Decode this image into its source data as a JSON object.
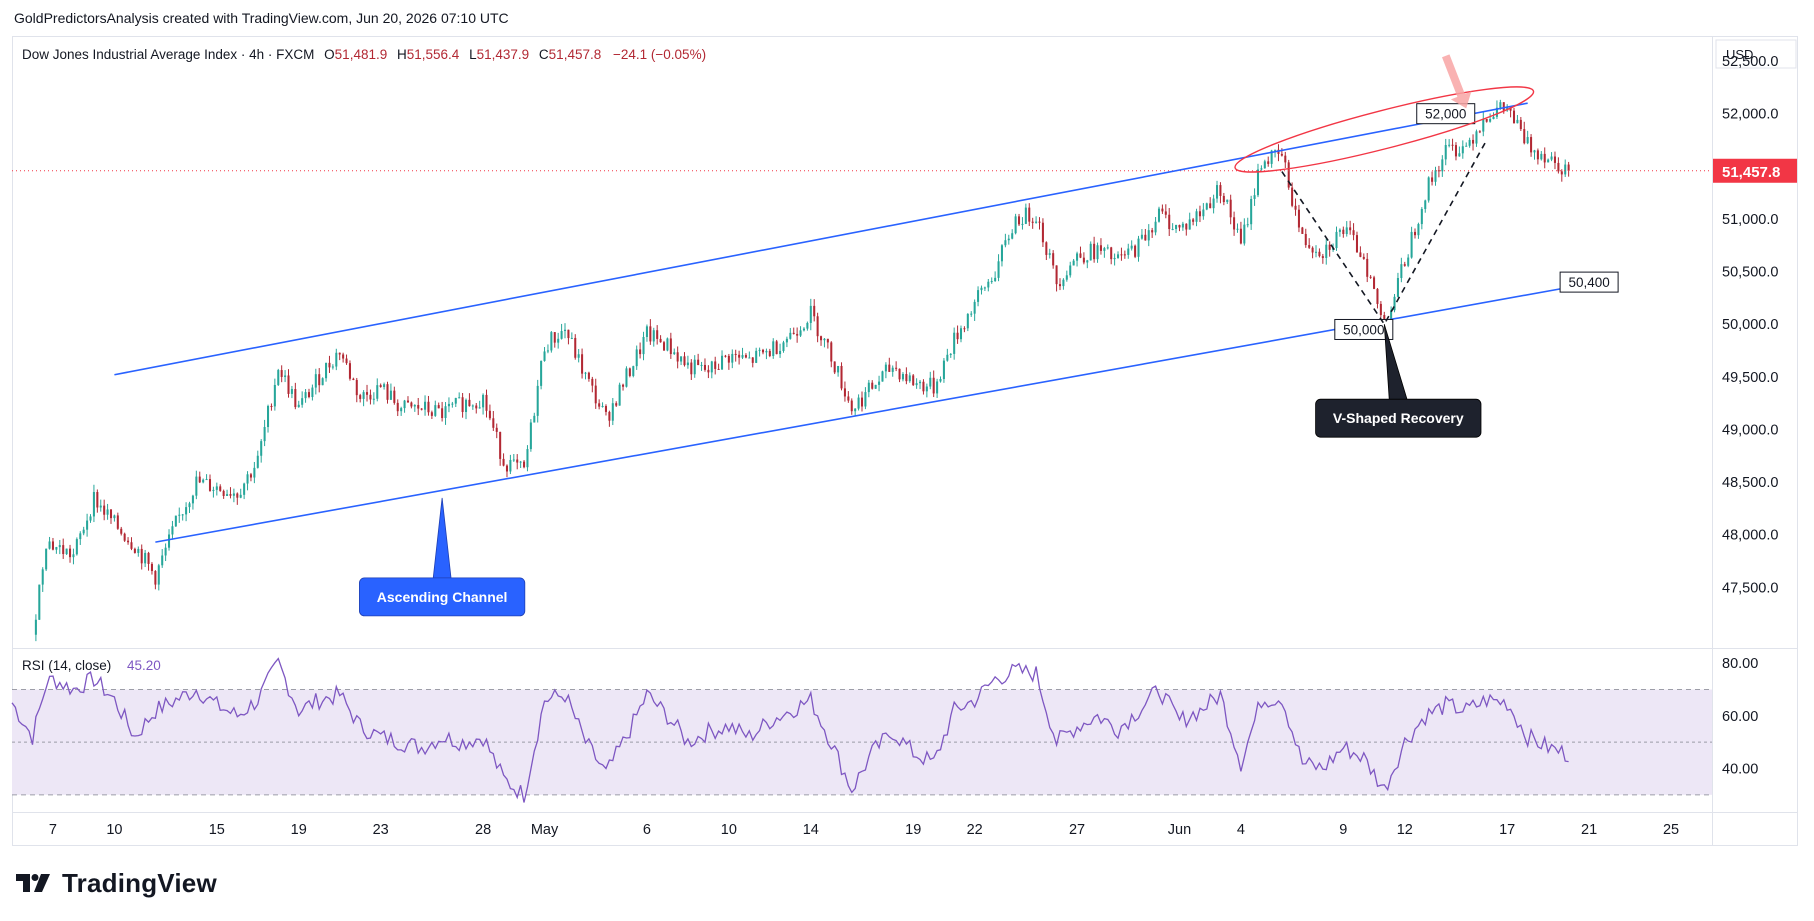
{
  "credit": "GoldPredictorsAnalysis created with TradingView.com, Jun 20, 2026 07:10 UTC",
  "header": {
    "symbol": "Dow Jones Industrial Average Index · 4h · FXCM",
    "o_label": "O",
    "o_value": "51,481.9",
    "h_label": "H",
    "h_value": "51,556.4",
    "l_label": "L",
    "l_value": "51,437.9",
    "c_label": "C",
    "c_value": "51,457.8",
    "change": "−24.1 (−0.05%)"
  },
  "currency": "USD",
  "last_price_label": "51,457.8",
  "colors": {
    "up": "#26a69a",
    "down": "#b22833",
    "channel": "#2962ff",
    "rsi": "#7e57c2",
    "rsi_band": "#ede7f6",
    "last_price": "#f23645",
    "ellipse": "#f23645",
    "arrow": "#f8a5a5",
    "callout_blue": "#2962ff",
    "callout_dark": "#1e222d"
  },
  "chart_data": {
    "type": "candlestick",
    "timeframe": "4h",
    "ylim": [
      47000,
      52700
    ],
    "y_ticks": [
      52500,
      52000,
      51500,
      51000,
      50500,
      50000,
      49500,
      49000,
      48500,
      48000,
      47500
    ],
    "y_tick_labels": [
      "52,500.0",
      "52,000.0",
      "51,500.0",
      "51,000.0",
      "50,500.0",
      "50,000.0",
      "49,500.0",
      "49,000.0",
      "48,500.0",
      "48,000.0",
      "47,500.0"
    ],
    "x_axis_range": [
      "2026-04-05",
      "2026-06-27"
    ],
    "x_ticks": [
      {
        "date": "2026-04-07",
        "label": "7"
      },
      {
        "date": "2026-04-10",
        "label": "10"
      },
      {
        "date": "2026-04-15",
        "label": "15"
      },
      {
        "date": "2026-04-19",
        "label": "19"
      },
      {
        "date": "2026-04-23",
        "label": "23"
      },
      {
        "date": "2026-04-28",
        "label": "28"
      },
      {
        "date": "2026-05-01",
        "label": "May"
      },
      {
        "date": "2026-05-06",
        "label": "6"
      },
      {
        "date": "2026-05-10",
        "label": "10"
      },
      {
        "date": "2026-05-14",
        "label": "14"
      },
      {
        "date": "2026-05-19",
        "label": "19"
      },
      {
        "date": "2026-05-22",
        "label": "22"
      },
      {
        "date": "2026-05-27",
        "label": "27"
      },
      {
        "date": "2026-06-01",
        "label": "Jun"
      },
      {
        "date": "2026-06-04",
        "label": "4"
      },
      {
        "date": "2026-06-09",
        "label": "9"
      },
      {
        "date": "2026-06-12",
        "label": "12"
      },
      {
        "date": "2026-06-17",
        "label": "17"
      },
      {
        "date": "2026-06-21",
        "label": "21"
      },
      {
        "date": "2026-06-25",
        "label": "25"
      }
    ],
    "price_anchors": [
      [
        "2026-04-06",
        47050
      ],
      [
        "2026-04-06T16:00",
        47950
      ],
      [
        "2026-04-07",
        47900
      ],
      [
        "2026-04-08",
        47800
      ],
      [
        "2026-04-09",
        48350
      ],
      [
        "2026-04-10",
        48100
      ],
      [
        "2026-04-11",
        47900
      ],
      [
        "2026-04-12",
        47600
      ],
      [
        "2026-04-13",
        48100
      ],
      [
        "2026-04-14",
        48500
      ],
      [
        "2026-04-15",
        48450
      ],
      [
        "2026-04-16",
        48400
      ],
      [
        "2026-04-17",
        48700
      ],
      [
        "2026-04-18",
        49600
      ],
      [
        "2026-04-19",
        49200
      ],
      [
        "2026-04-20",
        49500
      ],
      [
        "2026-04-21",
        49750
      ],
      [
        "2026-04-22",
        49300
      ],
      [
        "2026-04-23",
        49400
      ],
      [
        "2026-04-24",
        49200
      ],
      [
        "2026-04-25",
        49200
      ],
      [
        "2026-04-26",
        49150
      ],
      [
        "2026-04-27",
        49250
      ],
      [
        "2026-04-28",
        49300
      ],
      [
        "2026-04-29",
        48700
      ],
      [
        "2026-04-30",
        48600
      ],
      [
        "2026-05-01",
        49800
      ],
      [
        "2026-05-02",
        49950
      ],
      [
        "2026-05-03",
        49500
      ],
      [
        "2026-05-04",
        49100
      ],
      [
        "2026-05-05",
        49500
      ],
      [
        "2026-05-06",
        49900
      ],
      [
        "2026-05-07",
        49800
      ],
      [
        "2026-05-08",
        49600
      ],
      [
        "2026-05-09",
        49550
      ],
      [
        "2026-05-10",
        49700
      ],
      [
        "2026-05-11",
        49650
      ],
      [
        "2026-05-12",
        49750
      ],
      [
        "2026-05-13",
        49900
      ],
      [
        "2026-05-14",
        50100
      ],
      [
        "2026-05-15",
        49700
      ],
      [
        "2026-05-16",
        49200
      ],
      [
        "2026-05-17",
        49400
      ],
      [
        "2026-05-18",
        49600
      ],
      [
        "2026-05-19",
        49450
      ],
      [
        "2026-05-20",
        49400
      ],
      [
        "2026-05-21",
        49850
      ],
      [
        "2026-05-22",
        50200
      ],
      [
        "2026-05-23",
        50500
      ],
      [
        "2026-05-24",
        51000
      ],
      [
        "2026-05-25",
        51050
      ],
      [
        "2026-05-26",
        50400
      ],
      [
        "2026-05-27",
        50650
      ],
      [
        "2026-05-28",
        50700
      ],
      [
        "2026-05-29",
        50600
      ],
      [
        "2026-05-30",
        50750
      ],
      [
        "2026-05-31",
        51050
      ],
      [
        "2026-06-01",
        50900
      ],
      [
        "2026-06-02",
        51050
      ],
      [
        "2026-06-03",
        51300
      ],
      [
        "2026-06-04",
        50750
      ],
      [
        "2026-06-05",
        51550
      ],
      [
        "2026-06-06",
        51600
      ],
      [
        "2026-06-07",
        50800
      ],
      [
        "2026-06-08",
        50700
      ],
      [
        "2026-06-09",
        50900
      ],
      [
        "2026-06-10",
        50650
      ],
      [
        "2026-06-11",
        49950
      ],
      [
        "2026-06-12",
        50600
      ],
      [
        "2026-06-13",
        51250
      ],
      [
        "2026-06-14",
        51650
      ],
      [
        "2026-06-15",
        51700
      ],
      [
        "2026-06-16",
        52000
      ],
      [
        "2026-06-17",
        52050
      ],
      [
        "2026-06-18",
        51700
      ],
      [
        "2026-06-19",
        51600
      ],
      [
        "2026-06-20",
        51457.8
      ]
    ],
    "rsi": {
      "title": "RSI (14, close)",
      "value": "45.20",
      "ylim": [
        25,
        85
      ],
      "y_ticks": [
        80,
        60,
        40
      ],
      "y_tick_labels": [
        "80.00",
        "60.00",
        "40.00"
      ],
      "band": [
        30,
        70
      ],
      "midline": 50,
      "anchors": [
        [
          "2026-04-05",
          65
        ],
        [
          "2026-04-06",
          52
        ],
        [
          "2026-04-06T16:00",
          72
        ],
        [
          "2026-04-07",
          74
        ],
        [
          "2026-04-08",
          70
        ],
        [
          "2026-04-09",
          74
        ],
        [
          "2026-04-10",
          66
        ],
        [
          "2026-04-11",
          52
        ],
        [
          "2026-04-12",
          62
        ],
        [
          "2026-04-13",
          66
        ],
        [
          "2026-04-14",
          70
        ],
        [
          "2026-04-15",
          64
        ],
        [
          "2026-04-16",
          60
        ],
        [
          "2026-04-17",
          66
        ],
        [
          "2026-04-18",
          80
        ],
        [
          "2026-04-19",
          62
        ],
        [
          "2026-04-20",
          66
        ],
        [
          "2026-04-21",
          68
        ],
        [
          "2026-04-22",
          56
        ],
        [
          "2026-04-23",
          52
        ],
        [
          "2026-04-24",
          50
        ],
        [
          "2026-04-25",
          48
        ],
        [
          "2026-04-26",
          52
        ],
        [
          "2026-04-27",
          50
        ],
        [
          "2026-04-28",
          52
        ],
        [
          "2026-04-29",
          36
        ],
        [
          "2026-04-30",
          30
        ],
        [
          "2026-05-01",
          66
        ],
        [
          "2026-05-02",
          68
        ],
        [
          "2026-05-03",
          50
        ],
        [
          "2026-05-04",
          38
        ],
        [
          "2026-05-05",
          52
        ],
        [
          "2026-05-06",
          68
        ],
        [
          "2026-05-07",
          60
        ],
        [
          "2026-05-08",
          50
        ],
        [
          "2026-05-09",
          54
        ],
        [
          "2026-05-10",
          56
        ],
        [
          "2026-05-11",
          52
        ],
        [
          "2026-05-12",
          58
        ],
        [
          "2026-05-13",
          62
        ],
        [
          "2026-05-14",
          66
        ],
        [
          "2026-05-15",
          50
        ],
        [
          "2026-05-16",
          32
        ],
        [
          "2026-05-17",
          46
        ],
        [
          "2026-05-18",
          54
        ],
        [
          "2026-05-19",
          46
        ],
        [
          "2026-05-20",
          42
        ],
        [
          "2026-05-21",
          62
        ],
        [
          "2026-05-22",
          66
        ],
        [
          "2026-05-23",
          74
        ],
        [
          "2026-05-24",
          77
        ],
        [
          "2026-05-25",
          76
        ],
        [
          "2026-05-26",
          50
        ],
        [
          "2026-05-27",
          56
        ],
        [
          "2026-05-28",
          60
        ],
        [
          "2026-05-29",
          55
        ],
        [
          "2026-05-30",
          62
        ],
        [
          "2026-05-31",
          70
        ],
        [
          "2026-06-01",
          58
        ],
        [
          "2026-06-02",
          62
        ],
        [
          "2026-06-03",
          68
        ],
        [
          "2026-06-04",
          42
        ],
        [
          "2026-06-05",
          66
        ],
        [
          "2026-06-06",
          67
        ],
        [
          "2026-06-07",
          42
        ],
        [
          "2026-06-08",
          40
        ],
        [
          "2026-06-09",
          48
        ],
        [
          "2026-06-10",
          44
        ],
        [
          "2026-06-11",
          32
        ],
        [
          "2026-06-12",
          50
        ],
        [
          "2026-06-13",
          60
        ],
        [
          "2026-06-14",
          64
        ],
        [
          "2026-06-15",
          62
        ],
        [
          "2026-06-16",
          66
        ],
        [
          "2026-06-17",
          65
        ],
        [
          "2026-06-18",
          52
        ],
        [
          "2026-06-19",
          48
        ],
        [
          "2026-06-20",
          45.2
        ]
      ]
    },
    "annotations": [
      {
        "type": "trendline",
        "name": "channel-upper",
        "from": [
          "2026-04-10",
          49520
        ],
        "to": [
          "2026-06-18",
          52100
        ]
      },
      {
        "type": "trendline",
        "name": "channel-lower",
        "from": [
          "2026-04-12",
          47930
        ],
        "to": [
          "2026-06-20",
          50350
        ]
      },
      {
        "type": "label",
        "text": "52,000",
        "at": [
          "2026-06-14",
          52000
        ]
      },
      {
        "type": "label",
        "text": "50,000",
        "at": [
          "2026-06-10",
          49950
        ]
      },
      {
        "type": "label",
        "text": "50,400",
        "at": [
          "2026-06-21",
          50400
        ]
      },
      {
        "type": "callout",
        "text": "Ascending Channel",
        "points_to": [
          "2026-04-26",
          48350
        ]
      },
      {
        "type": "callout",
        "text": "V-Shaped Recovery",
        "points_to": [
          "2026-06-11",
          50000
        ]
      },
      {
        "type": "ellipse",
        "name": "resistance-zone",
        "from": [
          "2026-06-04",
          51500
        ],
        "to": [
          "2026-06-18",
          52200
        ]
      },
      {
        "type": "arrow",
        "name": "sell-arrow",
        "from": [
          "2026-06-14",
          52550
        ],
        "to": [
          "2026-06-15",
          52050
        ]
      },
      {
        "type": "dashed-path",
        "name": "v-recovery-path",
        "points": [
          [
            "2026-06-06",
            51450
          ],
          [
            "2026-06-11",
            50000
          ],
          [
            "2026-06-16",
            51750
          ]
        ]
      }
    ]
  },
  "logo_text": "TradingView"
}
